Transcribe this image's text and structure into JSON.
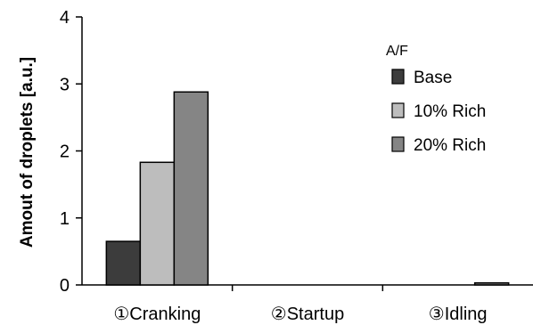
{
  "chart_data": {
    "type": "bar",
    "title": "",
    "xlabel": "",
    "ylabel": "Amout of droplets [a.u.]",
    "ylim": [
      0,
      4
    ],
    "yticks": [
      "0",
      "1",
      "2",
      "3",
      "4"
    ],
    "categories": [
      "①Cranking",
      "②Startup",
      "③Idling"
    ],
    "legend_title": "A/F",
    "legend_position": "top-right",
    "grid": false,
    "series": [
      {
        "name": "Base",
        "color": "#3c3c3c",
        "values": [
          0.65,
          0,
          0
        ]
      },
      {
        "name": "10% Rich",
        "color": "#bdbdbd",
        "values": [
          1.83,
          0,
          0
        ]
      },
      {
        "name": "20% Rich",
        "color": "#858585",
        "values": [
          2.88,
          0,
          0.03
        ]
      }
    ]
  }
}
